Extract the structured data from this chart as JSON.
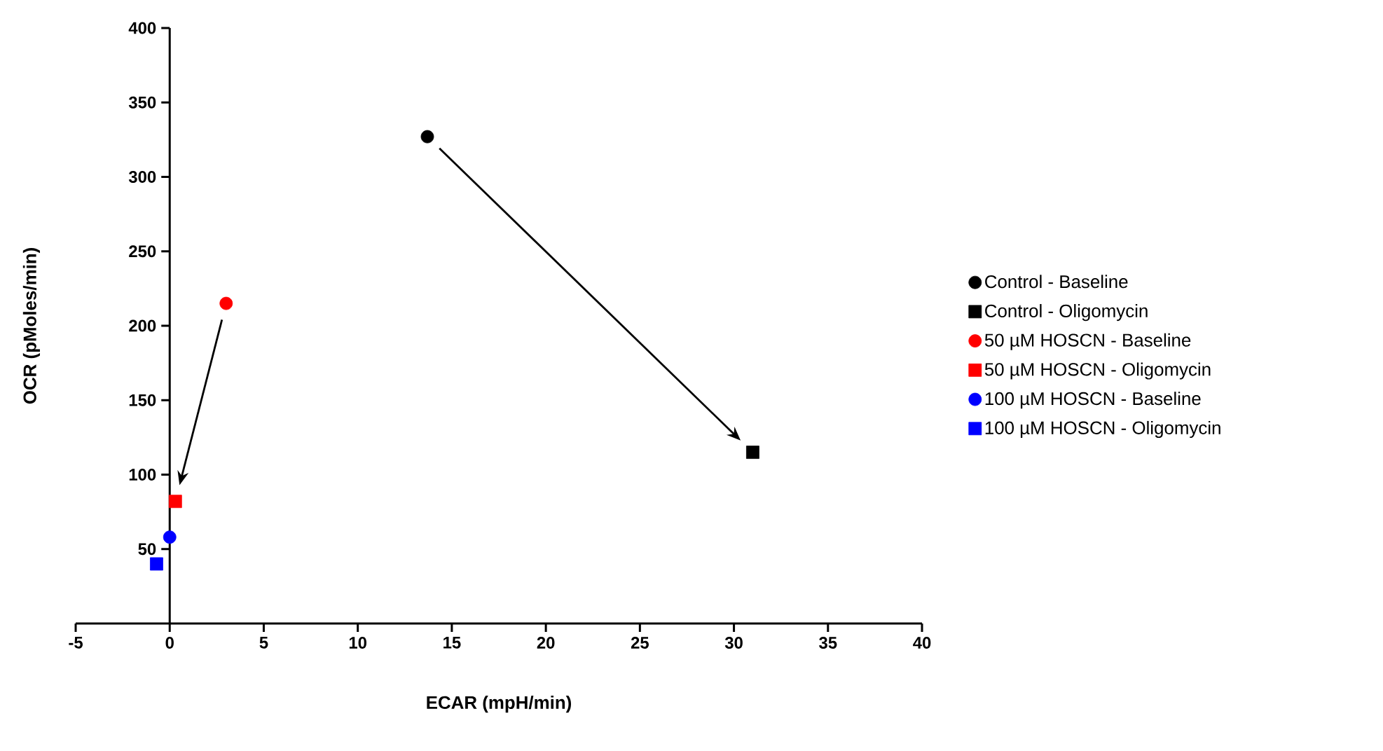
{
  "chart_data": {
    "type": "scatter",
    "xlabel": "ECAR (mpH/min)",
    "ylabel": "OCR (pMoles/min)",
    "xlim": [
      -5,
      40
    ],
    "ylim": [
      0,
      400
    ],
    "xticks": [
      -5,
      0,
      5,
      10,
      15,
      20,
      25,
      30,
      35,
      40
    ],
    "yticks": [
      50,
      100,
      150,
      200,
      250,
      300,
      350,
      400
    ],
    "legend": "right",
    "series": [
      {
        "name": "Control - Baseline",
        "color": "#000000",
        "marker": "circle",
        "x": [
          13.7
        ],
        "values": [
          327
        ]
      },
      {
        "name": "Control - Oligomycin",
        "color": "#000000",
        "marker": "square",
        "x": [
          31
        ],
        "values": [
          115
        ]
      },
      {
        "name": "50 µM HOSCN - Baseline",
        "color": "#ff0000",
        "marker": "circle",
        "x": [
          3
        ],
        "values": [
          215
        ]
      },
      {
        "name": "50 µM HOSCN - Oligomycin",
        "color": "#ff0000",
        "marker": "square",
        "x": [
          0.3
        ],
        "values": [
          82
        ]
      },
      {
        "name": "100 µM HOSCN - Baseline",
        "color": "#0000ff",
        "marker": "circle",
        "x": [
          0
        ],
        "values": [
          58
        ]
      },
      {
        "name": "100 µM HOSCN - Oligomycin",
        "color": "#0000ff",
        "marker": "square",
        "x": [
          -0.7
        ],
        "values": [
          40
        ]
      }
    ]
  }
}
